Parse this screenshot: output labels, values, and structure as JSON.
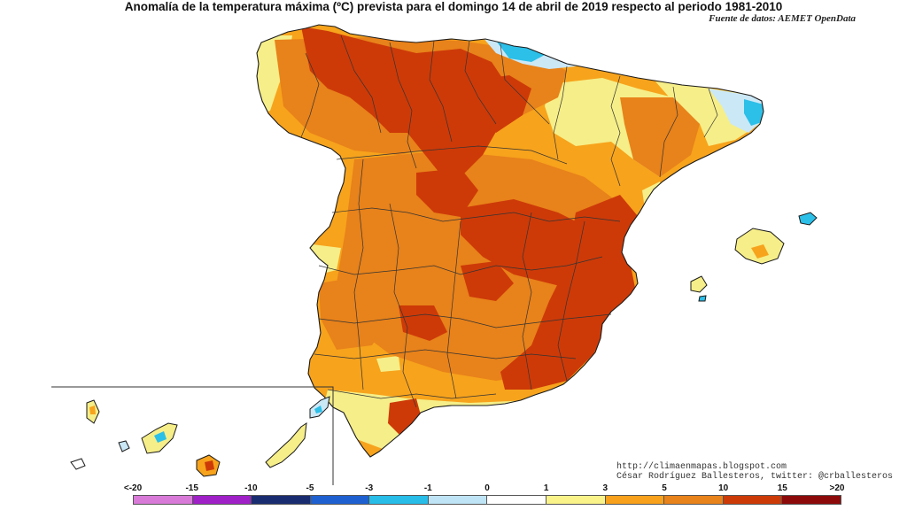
{
  "title": "Anomalía de la temperatura máxima (ºC) prevista para el domingo 14 de abril de 2019 respecto al periodo 1981-2010",
  "source": "Fuente de datos: AEMET OpenData",
  "credits": {
    "url": "http://climaenmapas.blogspot.com",
    "author": "César Rodríguez Ballesteros, twitter: @crballesteros"
  },
  "legend": {
    "labels": [
      "<-20",
      "-15",
      "-10",
      "-5",
      "-3",
      "-1",
      "0",
      "1",
      "3",
      "5",
      "10",
      "15",
      ">20"
    ],
    "colors": [
      "#d87ad8",
      "#a020c8",
      "#1a2c70",
      "#1f60d0",
      "#27bde8",
      "#bfe4f5",
      "#ffffff",
      "#faf38a",
      "#f7a11c",
      "#e8821a",
      "#cc3a08",
      "#8c0a0a",
      "#6b3a0d"
    ]
  },
  "map": {
    "colors": {
      "sea": "#ffffff",
      "anomaly_1_3": "#f6ee88",
      "anomaly_3_5": "#f7a31c",
      "anomaly_5_10": "#e8821a",
      "anomaly_10_15": "#cd3a08",
      "anomaly_minus1_0": "#cbe8f7",
      "anomaly_minus3_minus1": "#2cbfe8",
      "border": "#1a1a1a"
    }
  }
}
